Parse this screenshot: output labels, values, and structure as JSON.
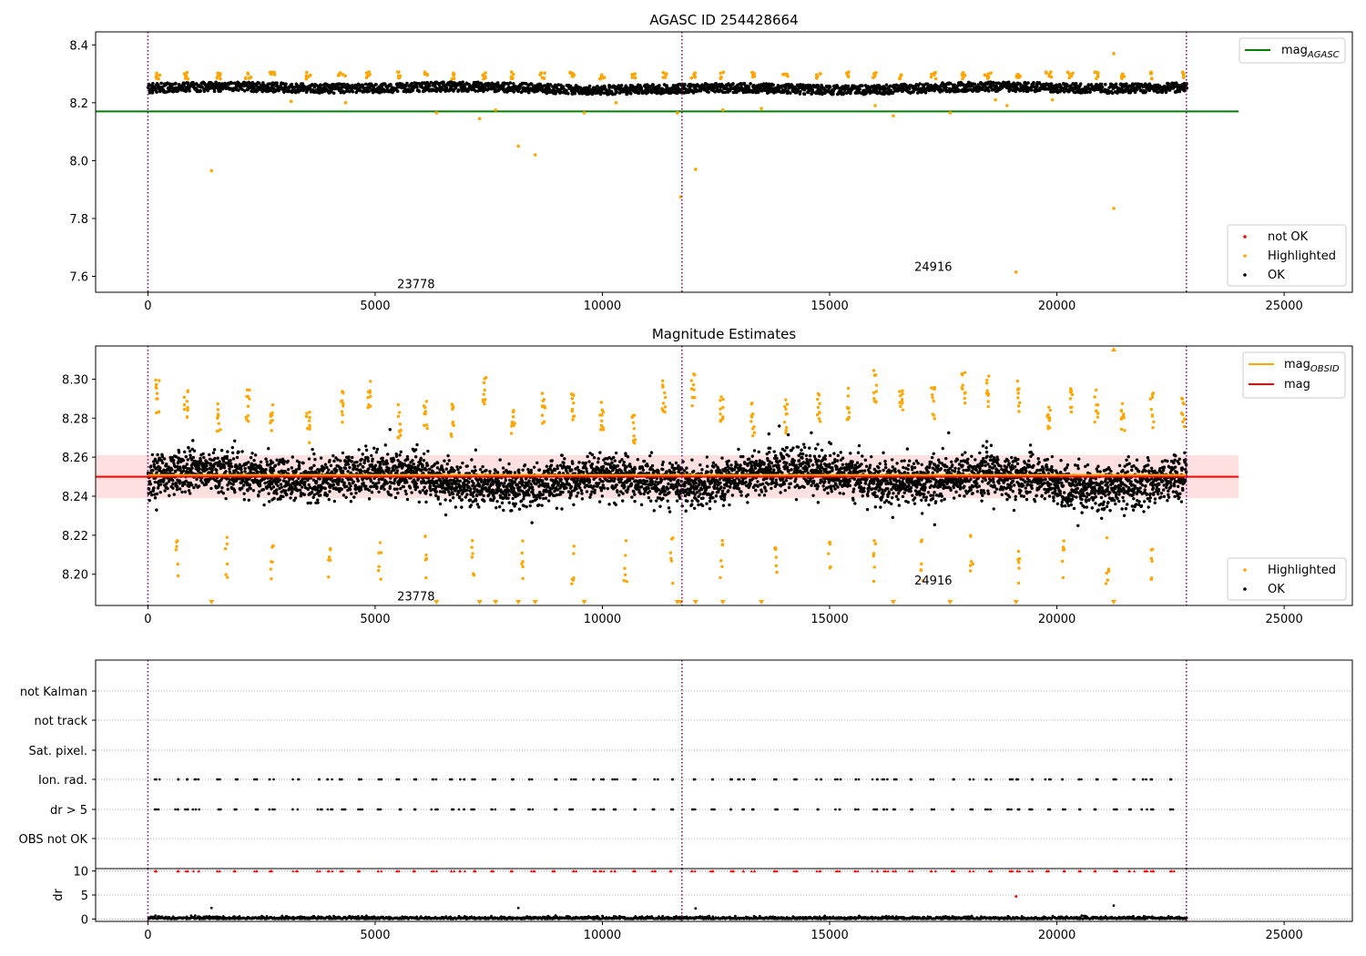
{
  "colors": {
    "ok": "#000000",
    "highlighted": "#ffa500",
    "not_ok": "#ff0000",
    "mag_agasc": "#008000",
    "mag_obsid": "#ffa500",
    "mag": "#ff0000",
    "mag_band": "#ffcccc",
    "obsid_boundary": "#800080",
    "flag_grid": "#b0b0b0"
  },
  "chart_data": [
    {
      "type": "scatter",
      "title": "AGASC ID 254428664",
      "xlim": [
        -1150,
        26500
      ],
      "ylim": [
        7.545,
        8.445
      ],
      "xticks": [
        0,
        5000,
        10000,
        15000,
        20000,
        25000
      ],
      "xtick_labels": [
        "0",
        "5000",
        "10000",
        "15000",
        "20000",
        "25000"
      ],
      "yticks": [
        7.6,
        7.8,
        8.0,
        8.2,
        8.4
      ],
      "ytick_labels": [
        "7.6",
        "7.8",
        "8.0",
        "8.2",
        "8.4"
      ],
      "obsid_boundaries": [
        0,
        11750,
        22850
      ],
      "obsid_labels": [
        {
          "text": "23778",
          "x": 5900,
          "y": 7.575
        },
        {
          "text": "24916",
          "x": 17280,
          "y": 7.635
        }
      ],
      "mag_agasc": {
        "value": 8.17,
        "x": [
          -1150,
          24000
        ]
      },
      "ok_band": {
        "center": 8.25,
        "half_width": 0.02,
        "x": [
          0,
          22850
        ]
      },
      "highlighted_points": [
        [
          1400,
          7.965
        ],
        [
          3150,
          8.205
        ],
        [
          4350,
          8.2
        ],
        [
          6350,
          8.165
        ],
        [
          7300,
          8.145
        ],
        [
          7650,
          8.175
        ],
        [
          8150,
          8.05
        ],
        [
          8520,
          8.02
        ],
        [
          9600,
          8.165
        ],
        [
          10300,
          8.2
        ],
        [
          11650,
          8.165
        ],
        [
          11720,
          7.875
        ],
        [
          12050,
          7.97
        ],
        [
          12650,
          8.175
        ],
        [
          13500,
          8.18
        ],
        [
          16000,
          8.19
        ],
        [
          16400,
          8.155
        ],
        [
          17650,
          8.165
        ],
        [
          18650,
          8.21
        ],
        [
          18900,
          8.19
        ],
        [
          19100,
          7.615
        ],
        [
          19900,
          8.21
        ],
        [
          21250,
          7.835
        ],
        [
          21250,
          8.37
        ]
      ],
      "legend": {
        "top": [
          {
            "label": "mag",
            "sub": "AGASC",
            "color": "#008000"
          }
        ],
        "bottom": [
          {
            "label": "not OK",
            "color": "#ff0000"
          },
          {
            "label": "Highlighted",
            "color": "#ffa500"
          },
          {
            "label": "OK",
            "color": "#000000"
          }
        ]
      }
    },
    {
      "type": "scatter",
      "title": "Magnitude Estimates",
      "xlim": [
        -1150,
        26500
      ],
      "ylim": [
        8.184,
        8.317
      ],
      "xticks": [
        0,
        5000,
        10000,
        15000,
        20000,
        25000
      ],
      "xtick_labels": [
        "0",
        "5000",
        "10000",
        "15000",
        "20000",
        "25000"
      ],
      "yticks": [
        8.2,
        8.22,
        8.24,
        8.26,
        8.28,
        8.3
      ],
      "ytick_labels": [
        "8.20",
        "8.22",
        "8.24",
        "8.26",
        "8.28",
        "8.30"
      ],
      "obsid_boundaries": [
        0,
        11750,
        22850
      ],
      "obsid_labels": [
        {
          "text": "23778",
          "x": 5900,
          "y": 8.189
        },
        {
          "text": "24916",
          "x": 17280,
          "y": 8.197
        }
      ],
      "mag": {
        "value": 8.25,
        "x": [
          -1150,
          24000
        ]
      },
      "mag_band": {
        "low": 8.239,
        "high": 8.261,
        "x": [
          -1150,
          24000
        ]
      },
      "below_axis_markers_x": [
        1400,
        6350,
        7300,
        7650,
        8150,
        8520,
        9600,
        11650,
        11720,
        12050,
        12650,
        13500,
        16400,
        17650,
        19100,
        21250
      ],
      "above_axis_markers_x": [
        21250
      ],
      "legend": {
        "top": [
          {
            "label": "mag",
            "sub": "OBSID",
            "color": "#ffa500"
          },
          {
            "label": "mag",
            "sub": "",
            "color": "#ff0000"
          }
        ],
        "bottom": [
          {
            "label": "Highlighted",
            "color": "#ffa500"
          },
          {
            "label": "OK",
            "color": "#000000"
          }
        ]
      }
    },
    {
      "type": "scatter",
      "title": "",
      "xlim": [
        -1150,
        26500
      ],
      "flag_categories": [
        "not Kalman",
        "not track",
        "Sat. pixel.",
        "Ion. rad.",
        "dr > 5",
        "OBS not OK"
      ],
      "flagged_rows": [
        "Ion. rad.",
        "dr > 5"
      ],
      "obsid_boundaries": [
        0,
        11750,
        22850
      ],
      "xticks": [
        0,
        5000,
        10000,
        15000,
        20000,
        25000
      ],
      "xtick_labels": [
        "0",
        "5000",
        "10000",
        "15000",
        "20000",
        "25000"
      ]
    },
    {
      "type": "scatter",
      "title": "",
      "ylabel": "dr",
      "xlim": [
        -1150,
        26500
      ],
      "ylim": [
        -0.5,
        10.5
      ],
      "yticks": [
        0,
        5,
        10
      ],
      "ytick_labels": [
        "0",
        "5",
        "10"
      ],
      "obsid_boundaries": [
        0,
        11750,
        22850
      ],
      "xticks": [
        0,
        5000,
        10000,
        15000,
        20000,
        25000
      ],
      "xtick_labels": [
        "0",
        "5000",
        "10000",
        "15000",
        "20000",
        "25000"
      ],
      "dr_outliers": [
        [
          1400,
          2.3
        ],
        [
          8150,
          2.3
        ],
        [
          12050,
          2.2
        ],
        [
          19100,
          4.7
        ],
        [
          21250,
          2.8
        ]
      ]
    }
  ]
}
